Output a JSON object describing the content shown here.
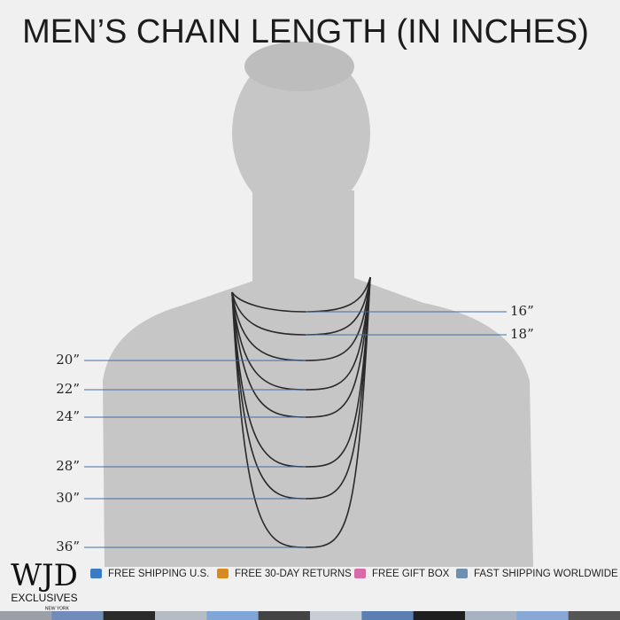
{
  "title": "MEN’S CHAIN LENGTH (IN INCHES)",
  "right_labels": [
    "16”",
    "18”"
  ],
  "left_labels": [
    "20”",
    "22”",
    "24”",
    "28”",
    "30”",
    "36”"
  ],
  "brand": {
    "logo": "WJD",
    "name": "EXCLUSIVES",
    "location": "NEW YORK"
  },
  "features": [
    "FREE SHIPPING U.S.",
    "FREE 30-DAY RETURNS",
    "FREE GIFT BOX",
    "FAST SHIPPING WORLDWIDE"
  ]
}
